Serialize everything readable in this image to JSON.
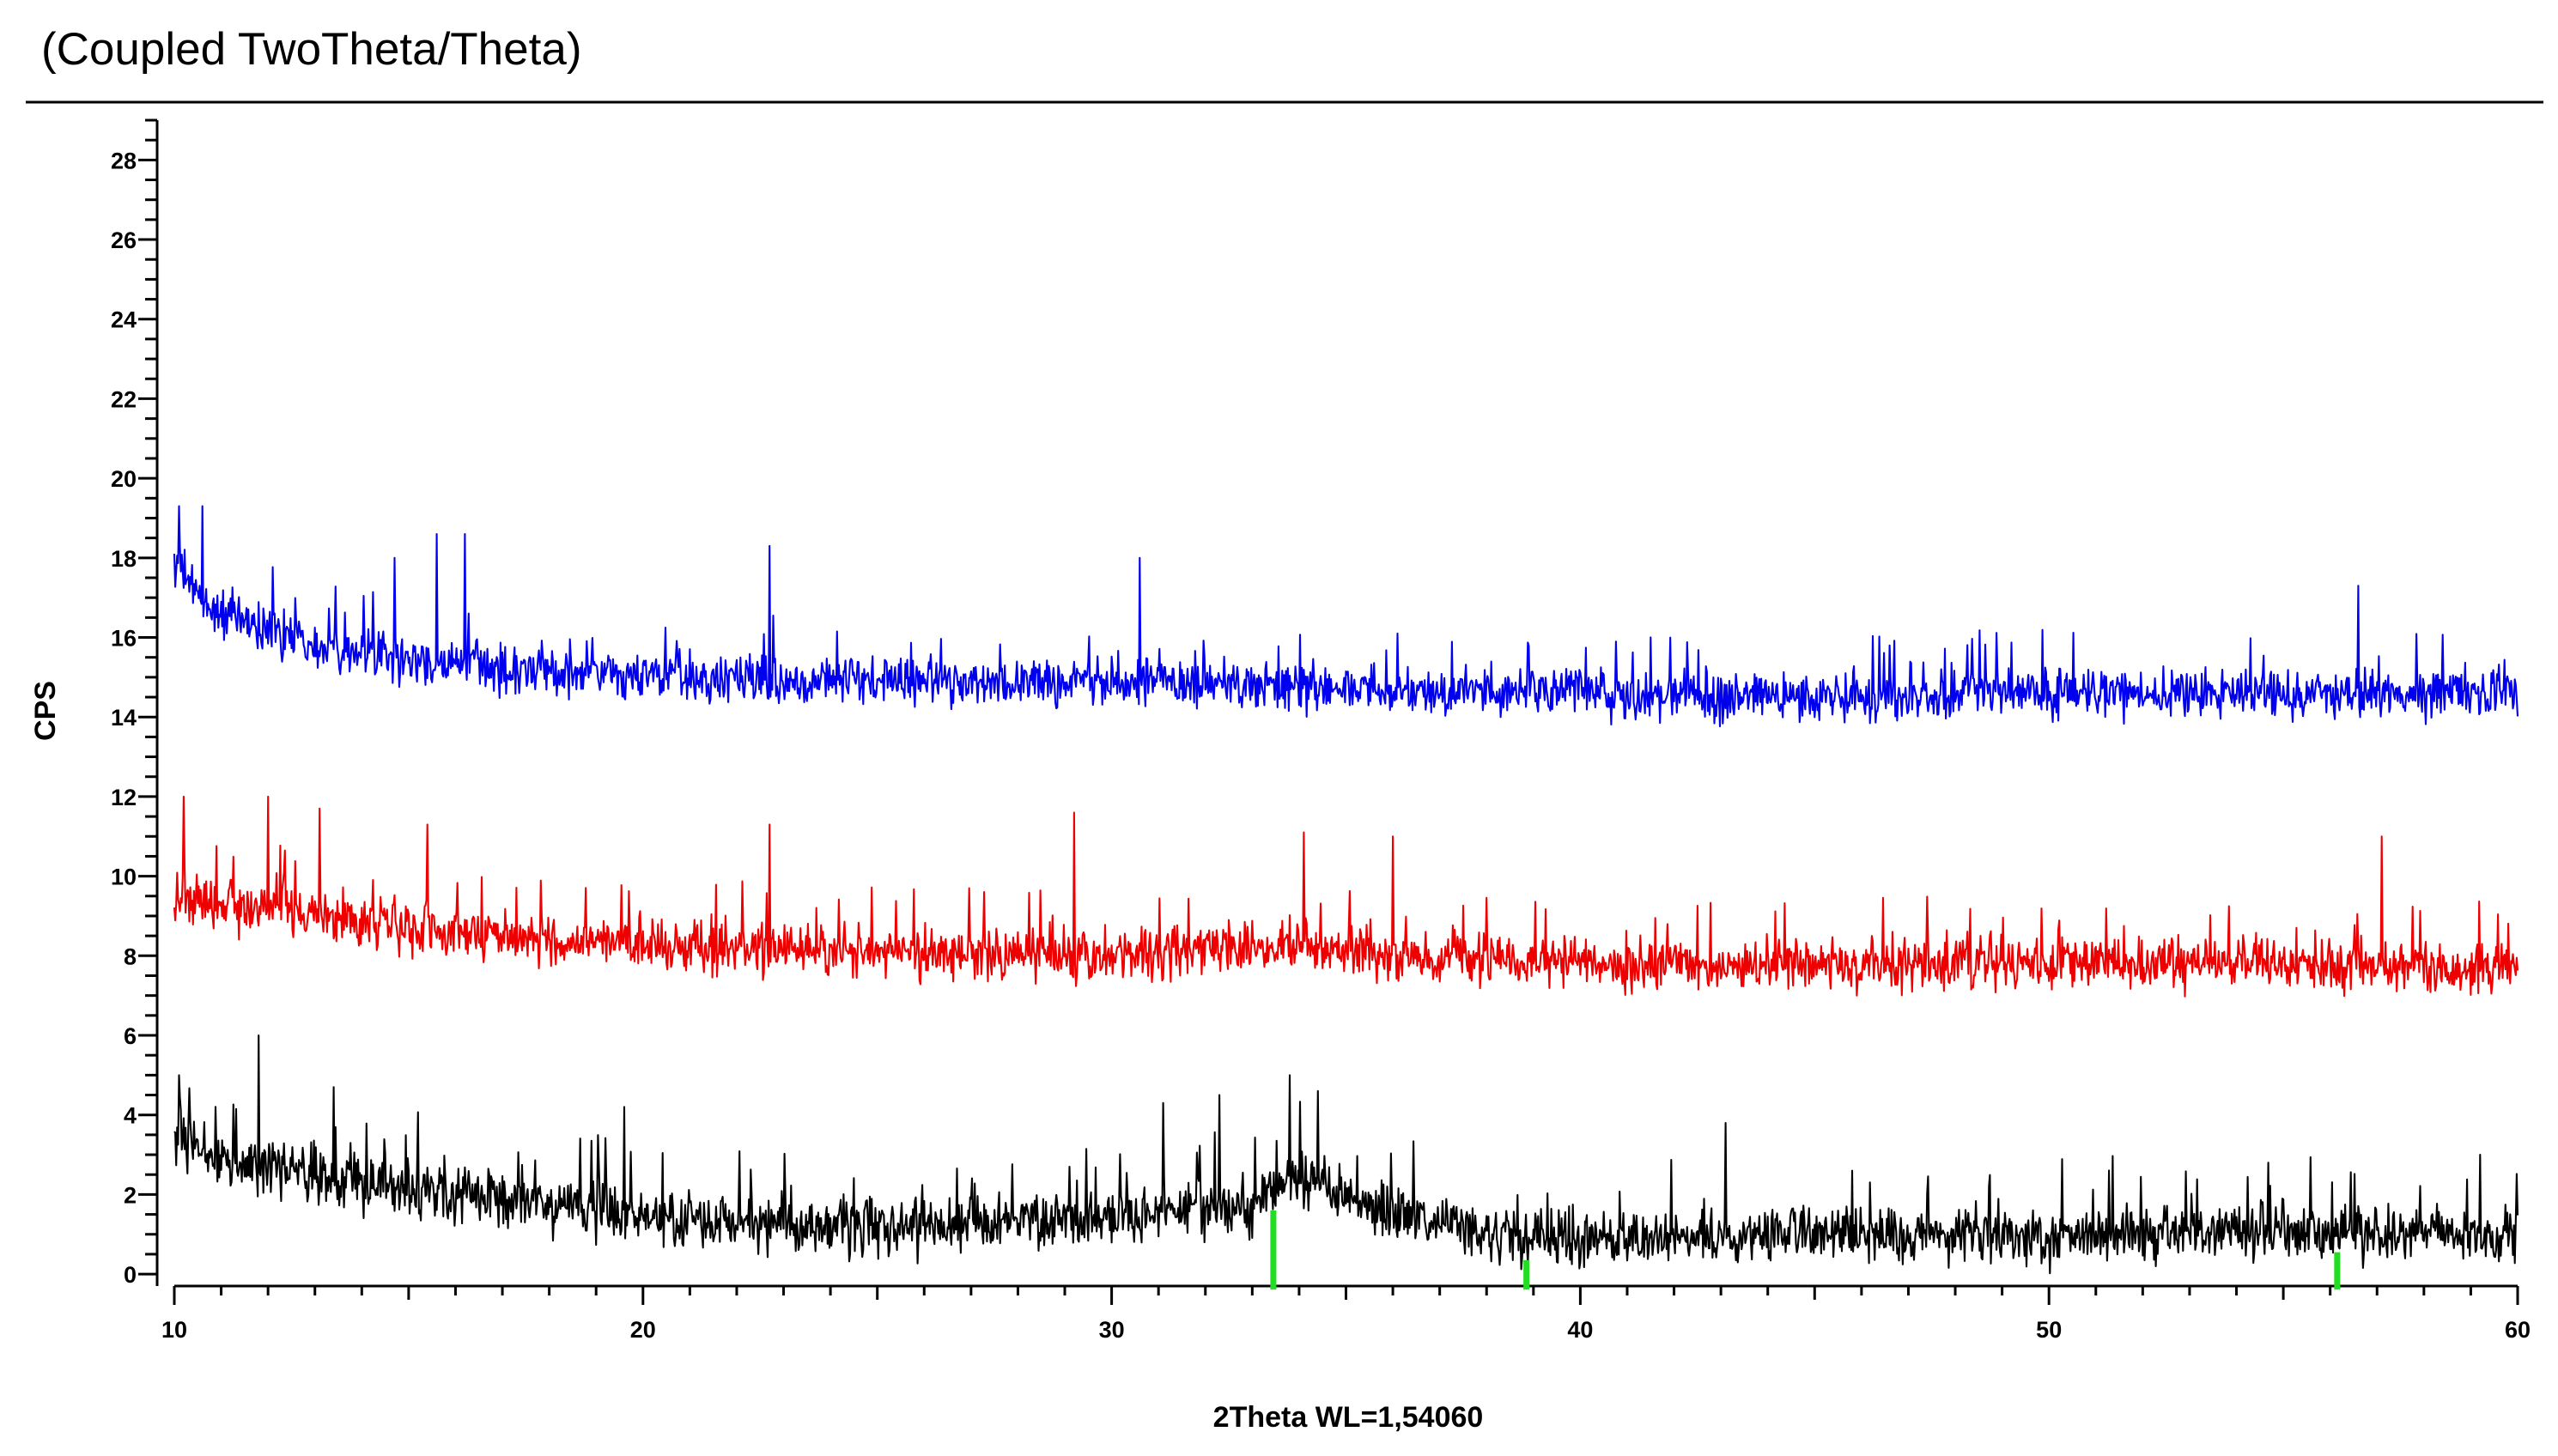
{
  "chart_data": {
    "type": "line",
    "title": "(Coupled TwoTheta/Theta)",
    "xlabel": "2Theta WL=1,54060",
    "ylabel": "CPS",
    "xlim": [
      10,
      60
    ],
    "ylim": [
      -0.3,
      29
    ],
    "x_ticks": [
      10,
      20,
      30,
      40,
      50,
      60
    ],
    "y_ticks": [
      0,
      2,
      4,
      6,
      8,
      10,
      12,
      14,
      16,
      18,
      20,
      22,
      24,
      26,
      28
    ],
    "grid": false,
    "legend": "none",
    "series": [
      {
        "color": "#0000ee",
        "baseline_points": [
          [
            10,
            18
          ],
          [
            10.5,
            17.0
          ],
          [
            11,
            16.6
          ],
          [
            12,
            16.2
          ],
          [
            13,
            15.9
          ],
          [
            14,
            15.6
          ],
          [
            15,
            15.4
          ],
          [
            16,
            15.3
          ],
          [
            17,
            15.2
          ],
          [
            20,
            15.0
          ],
          [
            25,
            14.9
          ],
          [
            30,
            14.9
          ],
          [
            35,
            14.7
          ],
          [
            40,
            14.6
          ],
          [
            45,
            14.5
          ],
          [
            50,
            14.6
          ],
          [
            55,
            14.6
          ],
          [
            60,
            14.6
          ]
        ],
        "noise_amplitude": 0.7,
        "peaks": [
          {
            "x": 10.1,
            "y": 19.3
          },
          {
            "x": 10.6,
            "y": 19.3
          },
          {
            "x": 16.2,
            "y": 18.6
          },
          {
            "x": 15.6,
            "y": 18.6
          },
          {
            "x": 22.7,
            "y": 18.3
          },
          {
            "x": 30.6,
            "y": 18.0
          },
          {
            "x": 56.6,
            "y": 17.3
          },
          {
            "x": 14.7,
            "y": 18.0
          }
        ]
      },
      {
        "color": "#ee0000",
        "baseline_points": [
          [
            10,
            9.4
          ],
          [
            12,
            9.2
          ],
          [
            14,
            8.9
          ],
          [
            16,
            8.6
          ],
          [
            18,
            8.4
          ],
          [
            20,
            8.3
          ],
          [
            25,
            8.1
          ],
          [
            30,
            8.0
          ],
          [
            34,
            8.3
          ],
          [
            36,
            8.0
          ],
          [
            40,
            7.8
          ],
          [
            45,
            7.8
          ],
          [
            50,
            7.8
          ],
          [
            55,
            7.8
          ],
          [
            60,
            7.7
          ]
        ],
        "noise_amplitude": 0.75,
        "peaks": [
          {
            "x": 10.2,
            "y": 12.0
          },
          {
            "x": 12.0,
            "y": 12.0
          },
          {
            "x": 13.1,
            "y": 11.7
          },
          {
            "x": 15.4,
            "y": 11.3
          },
          {
            "x": 22.7,
            "y": 11.3
          },
          {
            "x": 29.2,
            "y": 11.6
          },
          {
            "x": 34.1,
            "y": 11.1
          },
          {
            "x": 36.0,
            "y": 11.0
          },
          {
            "x": 57.1,
            "y": 11.0
          }
        ]
      },
      {
        "color": "#000000",
        "baseline_points": [
          [
            10,
            3.3
          ],
          [
            11,
            2.9
          ],
          [
            12,
            2.7
          ],
          [
            14,
            2.3
          ],
          [
            16,
            2.0
          ],
          [
            18,
            1.7
          ],
          [
            20,
            1.4
          ],
          [
            25,
            1.2
          ],
          [
            30,
            1.4
          ],
          [
            32,
            1.7
          ],
          [
            33,
            1.8
          ],
          [
            34,
            2.4
          ],
          [
            35,
            2.0
          ],
          [
            36,
            1.5
          ],
          [
            38,
            1.0
          ],
          [
            40,
            0.9
          ],
          [
            45,
            1.0
          ],
          [
            50,
            1.0
          ],
          [
            55,
            1.1
          ],
          [
            60,
            1.0
          ]
        ],
        "noise_amplitude": 0.85,
        "peaks": [
          {
            "x": 10.1,
            "y": 5.0
          },
          {
            "x": 11.8,
            "y": 6.0
          },
          {
            "x": 13.4,
            "y": 4.7
          },
          {
            "x": 19.6,
            "y": 4.2
          },
          {
            "x": 31.1,
            "y": 4.3
          },
          {
            "x": 32.3,
            "y": 4.5
          },
          {
            "x": 33.8,
            "y": 5.0
          },
          {
            "x": 34.4,
            "y": 4.6
          },
          {
            "x": 43.1,
            "y": 3.8
          },
          {
            "x": 59.2,
            "y": 3.0
          }
        ]
      }
    ],
    "reference_lines": {
      "color": "#22dd22",
      "lines": [
        {
          "x": 33.45,
          "height": 1.6
        },
        {
          "x": 38.85,
          "height": 0.35
        },
        {
          "x": 56.15,
          "height": 0.55
        }
      ]
    }
  }
}
